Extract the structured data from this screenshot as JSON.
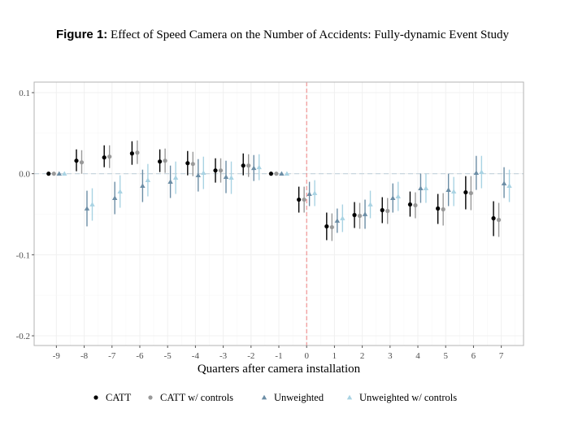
{
  "figure": {
    "number": "Figure 1:",
    "caption": "Effect of Speed Camera on the Number of Accidents: Fully-dynamic Event Study"
  },
  "colors": {
    "CATT": "#000000",
    "CATT w/ controls": "#999999",
    "Unweighted": "#6b8da5",
    "Unweighted w/ controls": "#a9d3e3",
    "event_line": "#f08080",
    "zero_line": "#c9d6de"
  },
  "chart_data": {
    "type": "scatter",
    "title": "",
    "xlabel": "Quarters after camera installation",
    "ylabel": "",
    "xlim": [
      -9.8,
      7.8
    ],
    "ylim": [
      -0.212,
      0.113
    ],
    "x_ticks": [
      -9,
      -8,
      -7,
      -6,
      -5,
      -4,
      -3,
      -2,
      -1,
      0,
      1,
      2,
      3,
      4,
      5,
      6,
      7
    ],
    "y_ticks": [
      0.1,
      0.0,
      -0.1,
      -0.2
    ],
    "y_tick_labels": [
      "0.1",
      "0.0",
      "-0.1",
      "-0.2"
    ],
    "event_line_x": 0,
    "zero_line_y": 0,
    "grid": true,
    "legend_position": "bottom",
    "series": [
      {
        "name": "CATT",
        "marker": "circle",
        "x": [
          -9,
          -8,
          -7,
          -6,
          -5,
          -4,
          -3,
          -2,
          -1,
          0,
          1,
          2,
          3,
          4,
          5,
          6,
          7
        ],
        "y": [
          0.0,
          0.016,
          0.02,
          0.025,
          0.015,
          0.013,
          0.004,
          0.01,
          0.0,
          -0.032,
          -0.065,
          -0.051,
          -0.045,
          -0.038,
          -0.043,
          -0.023,
          -0.055
        ],
        "lower": [
          null,
          0.003,
          0.008,
          0.011,
          0.002,
          -0.002,
          -0.011,
          -0.002,
          null,
          -0.048,
          -0.082,
          -0.067,
          -0.061,
          -0.053,
          -0.062,
          -0.044,
          -0.077
        ],
        "upper": [
          null,
          0.03,
          0.035,
          0.04,
          0.03,
          0.028,
          0.019,
          0.025,
          null,
          -0.016,
          -0.048,
          -0.035,
          -0.029,
          -0.022,
          -0.025,
          -0.003,
          -0.034
        ]
      },
      {
        "name": "CATT w/ controls",
        "marker": "circle",
        "x": [
          -9,
          -8,
          -7,
          -6,
          -5,
          -4,
          -3,
          -2,
          -1,
          0,
          1,
          2,
          3,
          4,
          5,
          6,
          7
        ],
        "y": [
          0.0,
          0.014,
          0.021,
          0.026,
          0.016,
          0.012,
          0.004,
          0.01,
          0.0,
          -0.032,
          -0.066,
          -0.052,
          -0.046,
          -0.039,
          -0.044,
          -0.024,
          -0.057
        ],
        "lower": [
          null,
          0.0,
          0.007,
          0.012,
          0.001,
          -0.003,
          -0.011,
          -0.004,
          null,
          -0.048,
          -0.083,
          -0.068,
          -0.062,
          -0.055,
          -0.064,
          -0.045,
          -0.078
        ],
        "upper": [
          null,
          0.029,
          0.035,
          0.041,
          0.031,
          0.027,
          0.019,
          0.024,
          null,
          -0.016,
          -0.049,
          -0.036,
          -0.03,
          -0.023,
          -0.024,
          -0.003,
          -0.036
        ]
      },
      {
        "name": "Unweighted",
        "marker": "triangle",
        "x": [
          -9,
          -8,
          -7,
          -6,
          -5,
          -4,
          -3,
          -2,
          -1,
          0,
          1,
          2,
          3,
          4,
          5,
          6,
          7
        ],
        "y": [
          0.0,
          -0.043,
          -0.03,
          -0.015,
          -0.01,
          -0.002,
          -0.004,
          0.007,
          0.0,
          -0.025,
          -0.058,
          -0.05,
          -0.03,
          -0.018,
          -0.02,
          0.001,
          -0.012
        ],
        "lower": [
          null,
          -0.065,
          -0.05,
          -0.035,
          -0.03,
          -0.022,
          -0.024,
          -0.009,
          null,
          -0.04,
          -0.073,
          -0.068,
          -0.048,
          -0.036,
          -0.04,
          -0.02,
          -0.03
        ],
        "upper": [
          null,
          -0.021,
          -0.01,
          0.005,
          0.01,
          0.018,
          0.016,
          0.023,
          null,
          -0.01,
          -0.043,
          -0.032,
          -0.012,
          0.0,
          0.0,
          0.022,
          0.008
        ]
      },
      {
        "name": "Unweighted w/ controls",
        "marker": "triangle",
        "x": [
          -9,
          -8,
          -7,
          -6,
          -5,
          -4,
          -3,
          -2,
          -1,
          0,
          1,
          2,
          3,
          4,
          5,
          6,
          7
        ],
        "y": [
          0.0,
          -0.038,
          -0.022,
          -0.008,
          -0.005,
          0.001,
          -0.005,
          0.008,
          0.0,
          -0.024,
          -0.055,
          -0.038,
          -0.028,
          -0.018,
          -0.022,
          0.002,
          -0.015
        ],
        "lower": [
          null,
          -0.058,
          -0.042,
          -0.028,
          -0.025,
          -0.019,
          -0.025,
          -0.008,
          null,
          -0.04,
          -0.072,
          -0.055,
          -0.046,
          -0.036,
          -0.04,
          -0.018,
          -0.035
        ],
        "upper": [
          null,
          -0.018,
          -0.002,
          0.012,
          0.015,
          0.021,
          0.015,
          0.024,
          null,
          -0.008,
          -0.038,
          -0.021,
          -0.01,
          0.0,
          -0.004,
          0.022,
          0.005
        ]
      }
    ]
  }
}
